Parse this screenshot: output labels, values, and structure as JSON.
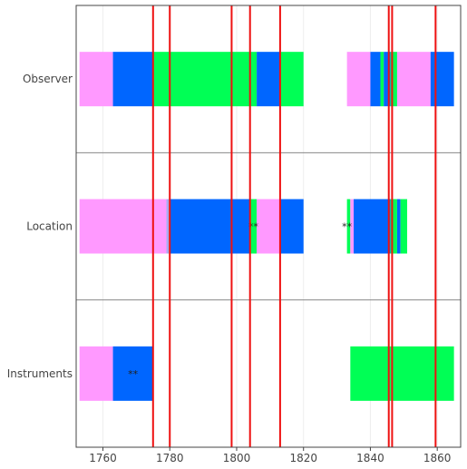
{
  "chart_data": {
    "type": "bar",
    "orientation": "horizontal-timeline",
    "title": "",
    "xlabel": "",
    "ylabel": "",
    "xlim": [
      1752,
      1867
    ],
    "x_ticks": [
      1760,
      1780,
      1800,
      1820,
      1840,
      1860
    ],
    "categories": [
      "Observer",
      "Location",
      "Instruments"
    ],
    "grid": true,
    "colors": {
      "pink": "#ff99ff",
      "blue": "#0066ff",
      "green": "#00ff55",
      "lavender": "#aaaaee",
      "red_line": "#ee1111",
      "separator": "#888888",
      "grid": "#eeeeee"
    },
    "segments": [
      {
        "category": "Observer",
        "start": 1753,
        "end": 1763,
        "color": "pink"
      },
      {
        "category": "Observer",
        "start": 1763,
        "end": 1775,
        "color": "blue"
      },
      {
        "category": "Observer",
        "start": 1775,
        "end": 1806,
        "color": "green"
      },
      {
        "category": "Observer",
        "start": 1806,
        "end": 1813,
        "color": "blue"
      },
      {
        "category": "Observer",
        "start": 1813,
        "end": 1820,
        "color": "green"
      },
      {
        "category": "Observer",
        "start": 1833,
        "end": 1840,
        "color": "pink"
      },
      {
        "category": "Observer",
        "start": 1840,
        "end": 1843,
        "color": "blue"
      },
      {
        "category": "Observer",
        "start": 1843,
        "end": 1844,
        "color": "green"
      },
      {
        "category": "Observer",
        "start": 1844,
        "end": 1846,
        "color": "blue"
      },
      {
        "category": "Observer",
        "start": 1846,
        "end": 1848,
        "color": "green"
      },
      {
        "category": "Observer",
        "start": 1848,
        "end": 1858,
        "color": "pink"
      },
      {
        "category": "Observer",
        "start": 1858,
        "end": 1865,
        "color": "blue"
      },
      {
        "category": "Location",
        "start": 1753,
        "end": 1779,
        "color": "pink"
      },
      {
        "category": "Location",
        "start": 1779,
        "end": 1780,
        "color": "lavender"
      },
      {
        "category": "Location",
        "start": 1780,
        "end": 1804,
        "color": "blue"
      },
      {
        "category": "Location",
        "start": 1804,
        "end": 1806,
        "color": "green"
      },
      {
        "category": "Location",
        "start": 1806,
        "end": 1813,
        "color": "pink"
      },
      {
        "category": "Location",
        "start": 1813,
        "end": 1820,
        "color": "blue"
      },
      {
        "category": "Location",
        "start": 1833,
        "end": 1834,
        "color": "green"
      },
      {
        "category": "Location",
        "start": 1834,
        "end": 1835,
        "color": "pink"
      },
      {
        "category": "Location",
        "start": 1835,
        "end": 1846,
        "color": "blue"
      },
      {
        "category": "Location",
        "start": 1846,
        "end": 1848,
        "color": "green"
      },
      {
        "category": "Location",
        "start": 1848,
        "end": 1849,
        "color": "blue"
      },
      {
        "category": "Location",
        "start": 1849,
        "end": 1851,
        "color": "green"
      },
      {
        "category": "Instruments",
        "start": 1753,
        "end": 1763,
        "color": "pink"
      },
      {
        "category": "Instruments",
        "start": 1763,
        "end": 1775,
        "color": "blue"
      },
      {
        "category": "Instruments",
        "start": 1834,
        "end": 1865,
        "color": "green"
      }
    ],
    "vertical_lines": [
      1775,
      1780,
      1798.5,
      1804,
      1813,
      1845.5,
      1846.5,
      1859.5
    ],
    "annotations": [
      {
        "category": "Location",
        "x": 1805,
        "text": "**"
      },
      {
        "category": "Location",
        "x": 1833,
        "text": "**"
      },
      {
        "category": "Instruments",
        "x": 1769,
        "text": "**"
      }
    ]
  }
}
